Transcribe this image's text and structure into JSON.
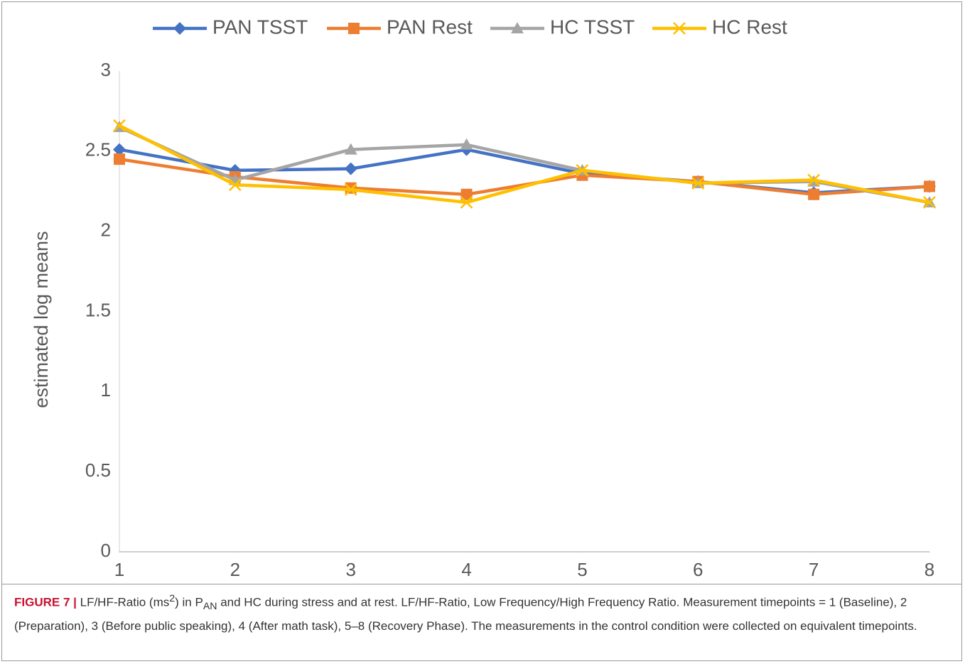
{
  "chart_data": {
    "type": "line",
    "y_label": "estimated log means",
    "x": [
      1,
      2,
      3,
      4,
      5,
      6,
      7,
      8
    ],
    "xlim": [
      1,
      8
    ],
    "xticks": [
      1,
      2,
      3,
      4,
      5,
      6,
      7,
      8
    ],
    "ylim": [
      0,
      3
    ],
    "yticks": [
      0,
      0.5,
      1,
      1.5,
      2,
      2.5,
      3
    ],
    "grid": false,
    "legend": "top",
    "series": [
      {
        "name": "PAN TSST",
        "color": "#4472c4",
        "marker": "diamond",
        "values": [
          2.51,
          2.38,
          2.39,
          2.51,
          2.36,
          2.31,
          2.24,
          2.28
        ]
      },
      {
        "name": "PAN Rest",
        "color": "#ed7d31",
        "marker": "square",
        "values": [
          2.45,
          2.34,
          2.27,
          2.23,
          2.35,
          2.31,
          2.23,
          2.28
        ]
      },
      {
        "name": "HC TSST",
        "color": "#a5a5a5",
        "marker": "triangle",
        "values": [
          2.65,
          2.32,
          2.51,
          2.54,
          2.38,
          2.3,
          2.31,
          2.18
        ]
      },
      {
        "name": "HC Rest",
        "color": "#ffc000",
        "marker": "x",
        "values": [
          2.66,
          2.29,
          2.26,
          2.18,
          2.38,
          2.3,
          2.32,
          2.18
        ]
      }
    ]
  },
  "caption": {
    "label": "FIGURE 7 |",
    "parts": [
      "LF/HF-Ratio (ms",
      "2",
      ") in P",
      "AN",
      " and HC during stress and at rest. LF/HF-Ratio, Low Frequency/High Frequency Ratio. Measurement timepoints = 1 (Baseline), 2 (Preparation), 3 (Before public speaking), 4 (After math task), 5–8 (Recovery Phase). The measurements in the control condition were collected on equivalent timepoints."
    ]
  }
}
